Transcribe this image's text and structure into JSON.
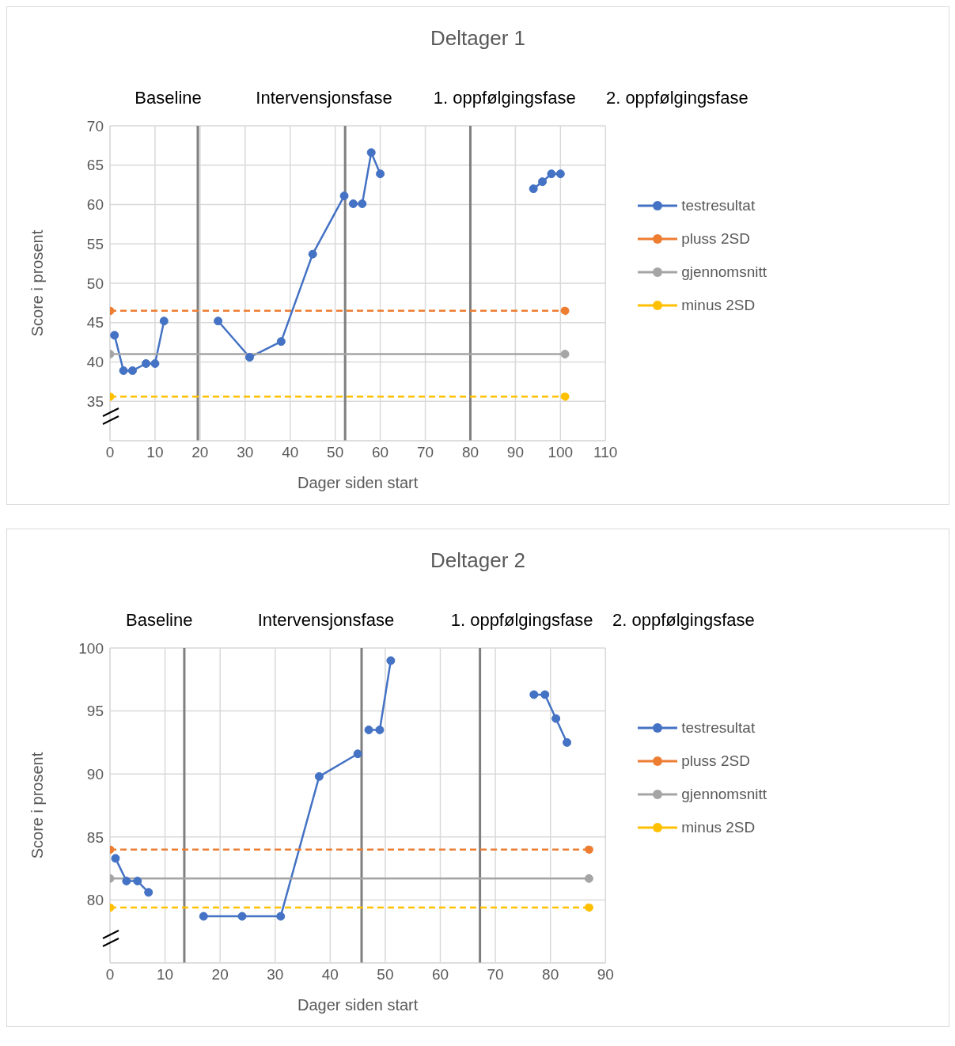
{
  "chart_data": [
    {
      "type": "line",
      "title": "Deltager 1",
      "xlabel": "Dager siden start",
      "ylabel": "Score i prosent",
      "annotations": [
        "Baseline",
        "Intervensjonsfase",
        "1. oppfølgingsfase",
        "2. oppfølgingsfase"
      ],
      "xlim": [
        0,
        110
      ],
      "xticks": [
        0,
        10,
        20,
        30,
        40,
        50,
        60,
        70,
        80,
        90,
        100,
        110
      ],
      "ylim": [
        30,
        70
      ],
      "yticks": [
        {
          "value": 30,
          "label": null
        },
        35,
        40,
        45,
        50,
        55,
        60,
        65,
        70
      ],
      "grid": true,
      "legend": "right",
      "marker": "circle",
      "ref_lines": [
        {
          "axis": "x",
          "value": 19.5,
          "color": "#7f7f7f"
        },
        {
          "axis": "x",
          "value": 52.2,
          "color": "#7f7f7f"
        },
        {
          "axis": "x",
          "value": 80,
          "color": "#7f7f7f"
        }
      ],
      "series": [
        {
          "name": "testresultat",
          "color": "#4472c4",
          "line_style": "solid",
          "x": [
            1,
            3,
            5,
            8,
            10,
            12,
            19.5,
            24,
            31,
            38,
            45,
            52,
            52.2,
            54,
            56,
            58,
            60,
            80,
            94,
            96,
            98,
            100
          ],
          "values": [
            43.4,
            38.9,
            38.9,
            39.8,
            39.8,
            45.2,
            null,
            45.2,
            40.6,
            42.6,
            53.7,
            61.1,
            null,
            60.1,
            60.1,
            66.6,
            63.9,
            null,
            62.0,
            62.9,
            63.9,
            63.9
          ]
        },
        {
          "name": "pluss 2SD",
          "color": "#ed7d31",
          "line_style": "dashed",
          "x": [
            0,
            101
          ],
          "values": [
            46.5,
            46.5
          ]
        },
        {
          "name": "gjennomsnitt",
          "color": "#a5a5a5",
          "line_style": "solid",
          "x": [
            0,
            101
          ],
          "values": [
            41.0,
            41.0
          ]
        },
        {
          "name": "minus 2SD",
          "color": "#ffc000",
          "line_style": "dashed",
          "x": [
            0,
            101
          ],
          "values": [
            35.6,
            35.6
          ]
        }
      ]
    },
    {
      "type": "line",
      "title": "Deltager 2",
      "xlabel": "Dager siden start",
      "ylabel": "Score i prosent",
      "annotations": [
        "Baseline",
        "Intervensjonsfase",
        "1. oppfølgingsfase",
        "2. oppfølgingsfase"
      ],
      "xlim": [
        0,
        90
      ],
      "xticks": [
        0,
        10,
        20,
        30,
        40,
        50,
        60,
        70,
        80,
        90
      ],
      "ylim": [
        75,
        100
      ],
      "yticks": [
        {
          "value": 75,
          "label": null
        },
        80,
        85,
        90,
        95,
        100
      ],
      "grid": true,
      "legend": "right",
      "marker": "circle",
      "ref_lines": [
        {
          "axis": "x",
          "value": 13.5,
          "color": "#7f7f7f"
        },
        {
          "axis": "x",
          "value": 45.7,
          "color": "#7f7f7f"
        },
        {
          "axis": "x",
          "value": 67.2,
          "color": "#7f7f7f"
        }
      ],
      "series": [
        {
          "name": "testresultat",
          "color": "#4472c4",
          "line_style": "solid",
          "x": [
            1,
            3,
            5,
            7,
            13.5,
            17,
            24,
            31,
            38,
            45,
            45.7,
            47,
            49,
            51,
            67.2,
            77,
            79,
            81,
            83
          ],
          "values": [
            83.3,
            81.5,
            81.5,
            80.6,
            null,
            78.7,
            78.7,
            78.7,
            89.8,
            91.6,
            null,
            93.5,
            93.5,
            99.0,
            null,
            96.3,
            96.3,
            94.4,
            92.5
          ]
        },
        {
          "name": "pluss 2SD",
          "color": "#ed7d31",
          "line_style": "dashed",
          "x": [
            0,
            87
          ],
          "values": [
            84.0,
            84.0
          ]
        },
        {
          "name": "gjennomsnitt",
          "color": "#a5a5a5",
          "line_style": "solid",
          "x": [
            0,
            87
          ],
          "values": [
            81.7,
            81.7
          ]
        },
        {
          "name": "minus 2SD",
          "color": "#ffc000",
          "line_style": "dashed",
          "x": [
            0,
            87
          ],
          "values": [
            79.4,
            79.4
          ]
        }
      ]
    }
  ]
}
